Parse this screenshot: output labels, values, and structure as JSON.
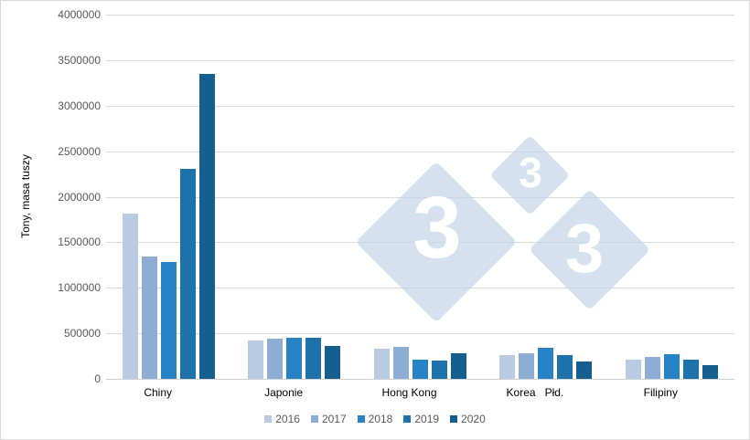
{
  "chart_data": {
    "type": "bar",
    "title": "",
    "xlabel": "",
    "ylabel": "Tony, masa tuszy",
    "ylim": [
      0,
      4000000
    ],
    "yticks": [
      0,
      500000,
      1000000,
      1500000,
      2000000,
      2500000,
      3000000,
      3500000,
      4000000
    ],
    "ytick_labels": [
      "0",
      "500000",
      "1000000",
      "1500000",
      "2000000",
      "2500000",
      "3000000",
      "3500000",
      "4000000"
    ],
    "grid": true,
    "legend_position": "bottom",
    "categories": [
      "Chiny",
      "Japonie",
      "Hong Kong",
      "Korea   Płd.",
      "Filipiny"
    ],
    "series": [
      {
        "name": "2016",
        "color": "#b9cae3",
        "values": [
          1810000,
          423000,
          333000,
          263000,
          210000
        ]
      },
      {
        "name": "2017",
        "color": "#8eadd5",
        "values": [
          1343000,
          443000,
          353000,
          276000,
          243000
        ]
      },
      {
        "name": "2018",
        "color": "#2683c6",
        "values": [
          1283000,
          453000,
          210000,
          340000,
          270000
        ]
      },
      {
        "name": "2019",
        "color": "#1e72ac",
        "values": [
          2306000,
          453000,
          200000,
          260000,
          213000
        ]
      },
      {
        "name": "2020",
        "color": "#155e90",
        "values": [
          3349000,
          356000,
          280000,
          190000,
          150000
        ]
      }
    ]
  },
  "watermark": {
    "glyph": "3",
    "color": "#d5e1ee"
  }
}
